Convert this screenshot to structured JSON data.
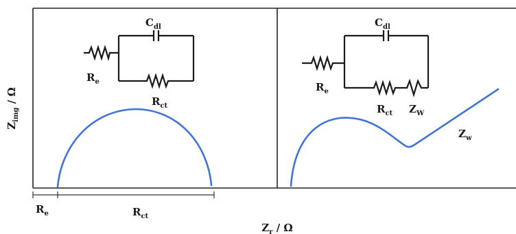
{
  "axes": {
    "ylabel_main": "Z",
    "ylabel_sub": "img",
    "ylabel_unit": " / Ω",
    "xlabel_main": "Z",
    "xlabel_sub": "r",
    "xlabel_unit": " / Ω"
  },
  "left_panel": {
    "circuit": {
      "cdl_main": "C",
      "cdl_sub": "dl",
      "re_main": "R",
      "re_sub": "e",
      "rct_main": "R",
      "rct_sub": "ct"
    },
    "below_axis": {
      "re_main": "R",
      "re_sub": "e",
      "rct_main": "R",
      "rct_sub": "ct"
    }
  },
  "right_panel": {
    "circuit": {
      "cdl_main": "C",
      "cdl_sub": "dl",
      "re_main": "R",
      "re_sub": "e",
      "rct_main": "R",
      "rct_sub": "ct",
      "zw_main": "Z",
      "zw_sub": "W"
    },
    "curve_label_main": "Z",
    "curve_label_sub": "w"
  }
}
